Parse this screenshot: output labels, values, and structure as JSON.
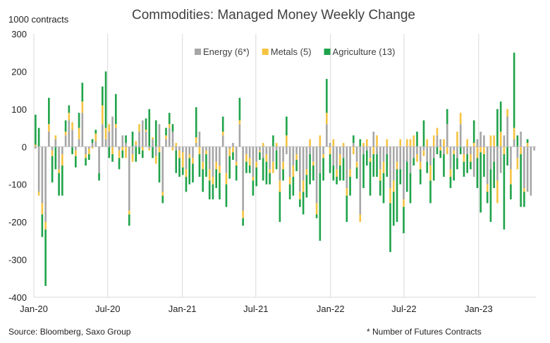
{
  "chart_data": {
    "type": "bar",
    "stacked": true,
    "title": "Commodities: Managed Money Weekly Change",
    "unit_label": "1000 contracts",
    "ylim": [
      -400,
      300
    ],
    "y_ticks": [
      300,
      200,
      100,
      0,
      -100,
      -200,
      -300,
      -400
    ],
    "x_range": [
      "2020-01-01",
      "2023-05-22"
    ],
    "x_ticks": [
      {
        "date": "2020-01-01",
        "label": "Jan-20"
      },
      {
        "date": "2020-07-01",
        "label": "Jul-20"
      },
      {
        "date": "2021-01-01",
        "label": "Jan-21"
      },
      {
        "date": "2021-07-01",
        "label": "Jul-21"
      },
      {
        "date": "2022-01-01",
        "label": "Jan-22"
      },
      {
        "date": "2022-07-01",
        "label": "Jul-22"
      },
      {
        "date": "2023-01-01",
        "label": "Jan-23"
      }
    ],
    "grid": "vertical",
    "legend_position": "top-right",
    "colors": {
      "energy": "#a6a6a6",
      "metals": "#f6c342",
      "agriculture": "#1fa34a"
    },
    "series": [
      {
        "key": "energy",
        "name": "Energy (6*)",
        "values": [
          -5,
          -120,
          -150,
          -200,
          40,
          -10,
          20,
          -60,
          -20,
          30,
          70,
          45,
          -10,
          20,
          90,
          -20,
          -5,
          10,
          15,
          -70,
          60,
          20,
          40,
          80,
          50,
          -10,
          30,
          10,
          -170,
          -20,
          5,
          40,
          70,
          40,
          -5,
          20,
          -25,
          60,
          -120,
          20,
          50,
          40,
          -10,
          -10,
          -15,
          -60,
          -20,
          -30,
          10,
          40,
          -40,
          -10,
          -60,
          -80,
          -40,
          -50,
          30,
          -70,
          -5,
          10,
          -40,
          60,
          -170,
          -20,
          -30,
          -80,
          -40,
          -10,
          -30,
          -20,
          -60,
          -40,
          -10,
          -90,
          -40,
          -20,
          -80,
          -50,
          -20,
          -120,
          -90,
          -60,
          -20,
          -40,
          -150,
          -70,
          -20,
          60,
          10,
          -50,
          -60,
          -20,
          -30,
          -110,
          -60,
          10,
          -40,
          -180,
          -20,
          -10,
          -30,
          40,
          -20,
          -60,
          -40,
          -20,
          -110,
          -90,
          -40,
          -60,
          -140,
          -40,
          -70,
          -30,
          -20,
          -40,
          -10,
          -40,
          -50,
          -30,
          30,
          20,
          -20,
          60,
          -60,
          -10,
          -30,
          60,
          -20,
          -20,
          -20,
          -80,
          20,
          40,
          30,
          -100,
          -60,
          -40,
          -90,
          -70,
          30,
          80,
          -60,
          20,
          -30,
          40,
          -110,
          -120,
          -130,
          -10
        ]
      },
      {
        "key": "metals",
        "name": "Metals (5)",
        "values": [
          5,
          -10,
          -30,
          -20,
          20,
          -15,
          10,
          -10,
          -30,
          10,
          20,
          20,
          -15,
          30,
          30,
          -10,
          -15,
          -5,
          20,
          0,
          50,
          30,
          20,
          -20,
          10,
          -20,
          -10,
          -30,
          -10,
          -20,
          10,
          20,
          -10,
          5,
          -5,
          5,
          -20,
          -15,
          -10,
          10,
          10,
          -10,
          10,
          -20,
          -40,
          -20,
          -10,
          -15,
          15,
          -20,
          -20,
          -10,
          -30,
          -20,
          -20,
          -20,
          10,
          -30,
          -20,
          -15,
          -10,
          10,
          -20,
          -20,
          -20,
          -10,
          -15,
          -5,
          10,
          -20,
          -10,
          -30,
          10,
          -30,
          -20,
          30,
          -20,
          -30,
          -15,
          -20,
          -30,
          -15,
          20,
          -10,
          -30,
          30,
          -10,
          30,
          -20,
          20,
          -20,
          -30,
          10,
          -20,
          -20,
          -20,
          -15,
          -20,
          10,
          20,
          -10,
          -20,
          30,
          -30,
          -30,
          20,
          -40,
          -30,
          -20,
          20,
          -20,
          20,
          20,
          30,
          -20,
          -20,
          -15,
          20,
          -40,
          30,
          20,
          -10,
          20,
          -20,
          -20,
          -10,
          40,
          30,
          -20,
          20,
          -20,
          10,
          -30,
          -15,
          -20,
          -20,
          30,
          30,
          -60,
          40,
          -20,
          20,
          -40,
          30,
          -30,
          -20,
          -10,
          10
        ]
      },
      {
        "key": "agriculture",
        "name": "Agriculture (13)",
        "values": [
          80,
          50,
          -60,
          -150,
          70,
          -70,
          -60,
          -60,
          -80,
          30,
          20,
          -20,
          -30,
          40,
          50,
          -20,
          -15,
          10,
          10,
          -20,
          50,
          150,
          -30,
          -20,
          80,
          -30,
          -20,
          20,
          -30,
          40,
          -40,
          -20,
          -20,
          30,
          100,
          -30,
          70,
          -80,
          -20,
          20,
          30,
          20,
          -60,
          -50,
          -20,
          -40,
          -70,
          -50,
          80,
          -60,
          -60,
          -60,
          -50,
          -40,
          -50,
          -70,
          40,
          -60,
          -60,
          -20,
          -40,
          60,
          -20,
          -30,
          -20,
          -40,
          -50,
          -20,
          -60,
          -60,
          -30,
          30,
          -50,
          -80,
          -30,
          50,
          -40,
          -50,
          -30,
          -20,
          -60,
          -60,
          -80,
          -40,
          -10,
          -180,
          -60,
          90,
          -50,
          -40,
          -20,
          -40,
          -60,
          -70,
          -50,
          20,
          -30,
          20,
          -90,
          -40,
          -90,
          -60,
          -60,
          -40,
          -80,
          -60,
          -130,
          -90,
          -140,
          -40,
          -70,
          -80,
          -80,
          -20,
          40,
          -40,
          70,
          -30,
          -60,
          -60,
          -20,
          -20,
          -60,
          40,
          -30,
          -70,
          -30,
          -20,
          -40,
          -50,
          -20,
          60,
          -80,
          -160,
          -60,
          -30,
          -140,
          -70,
          100,
          80,
          -200,
          -50,
          -40,
          200,
          30,
          -140,
          -40,
          10
        ]
      }
    ],
    "footnote_left": "Source: Bloomberg, Saxo Group",
    "footnote_right": "* Number of Futures Contracts"
  }
}
